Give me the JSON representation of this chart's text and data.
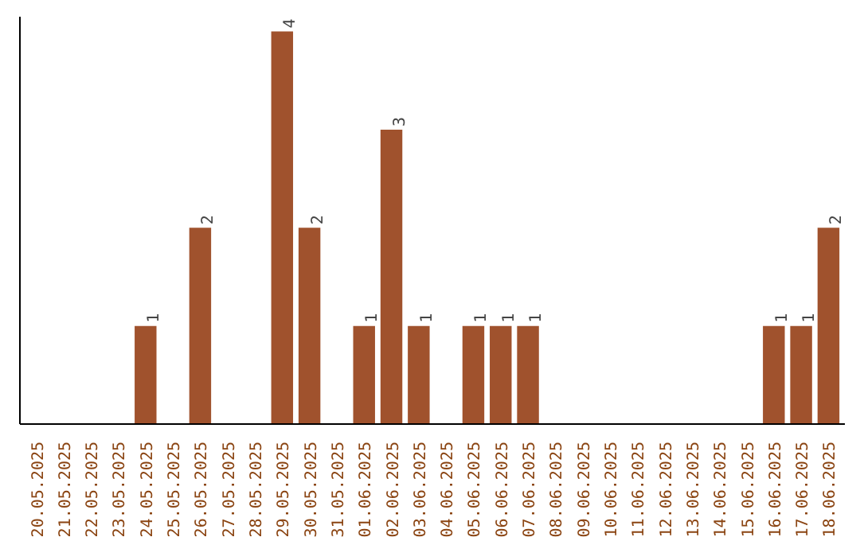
{
  "chart_data": {
    "type": "bar",
    "categories": [
      "20.05.2025",
      "21.05.2025",
      "22.05.2025",
      "23.05.2025",
      "24.05.2025",
      "25.05.2025",
      "26.05.2025",
      "27.05.2025",
      "28.05.2025",
      "29.05.2025",
      "30.05.2025",
      "31.05.2025",
      "01.06.2025",
      "02.06.2025",
      "03.06.2025",
      "04.06.2025",
      "05.06.2025",
      "06.06.2025",
      "07.06.2025",
      "08.06.2025",
      "09.06.2025",
      "10.06.2025",
      "11.06.2025",
      "12.06.2025",
      "13.06.2025",
      "14.06.2025",
      "15.06.2025",
      "16.06.2025",
      "17.06.2025",
      "18.06.2025"
    ],
    "values": [
      0,
      0,
      0,
      0,
      1,
      0,
      2,
      0,
      0,
      4,
      2,
      0,
      1,
      3,
      1,
      0,
      1,
      1,
      1,
      0,
      0,
      0,
      0,
      0,
      0,
      0,
      0,
      1,
      1,
      2
    ],
    "value_labels": [
      null,
      null,
      null,
      null,
      "1",
      null,
      "2",
      null,
      null,
      "4",
      "2",
      null,
      "1",
      "3",
      "1",
      null,
      "1",
      "1",
      "1",
      null,
      null,
      null,
      null,
      null,
      null,
      null,
      null,
      "1",
      "1",
      "2"
    ],
    "color": "#a0522d",
    "ylim": [
      0,
      4.15
    ],
    "grid": false
  }
}
